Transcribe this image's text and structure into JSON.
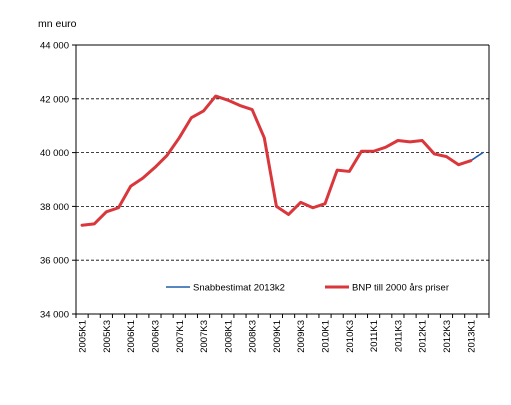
{
  "chart_data": {
    "type": "line",
    "title": "",
    "ylabel": "mn euro",
    "xlabel": "",
    "ylim": [
      34000,
      44000
    ],
    "yticks": [
      34000,
      36000,
      38000,
      40000,
      42000,
      44000
    ],
    "ytick_labels": [
      "34 000",
      "36 000",
      "38 000",
      "40 000",
      "42 000",
      "44 000"
    ],
    "grid": "horizontal-dashed",
    "legend_position": "bottom-right-inside",
    "x": [
      "2005K1",
      "2005K2",
      "2005K3",
      "2005K4",
      "2006K1",
      "2006K2",
      "2006K3",
      "2006K4",
      "2007K1",
      "2007K2",
      "2007K3",
      "2007K4",
      "2008K1",
      "2008K2",
      "2008K3",
      "2008K4",
      "2009K1",
      "2009K2",
      "2009K3",
      "2009K4",
      "2010K1",
      "2010K2",
      "2010K3",
      "2010K4",
      "2011K1",
      "2011K2",
      "2011K3",
      "2011K4",
      "2012K1",
      "2012K2",
      "2012K3",
      "2012K4",
      "2013K1",
      "2013K2"
    ],
    "x_tick_labels": [
      "2005K1",
      "2005K3",
      "2006K1",
      "2006K3",
      "2007K1",
      "2007K3",
      "2008K1",
      "2008K3",
      "2009K1",
      "2009K3",
      "2010K1",
      "2010K3",
      "2011K1",
      "2011K3",
      "2012K1",
      "2012K3",
      "2013K1"
    ],
    "series": [
      {
        "name": "Snabbestimat 2013k2",
        "color": "#1f5fa8",
        "values": [
          null,
          null,
          null,
          null,
          null,
          null,
          null,
          null,
          null,
          null,
          null,
          null,
          null,
          null,
          null,
          null,
          null,
          null,
          null,
          null,
          null,
          null,
          null,
          null,
          null,
          null,
          null,
          null,
          null,
          null,
          null,
          null,
          39700,
          40000
        ]
      },
      {
        "name": "BNP till 2000 års priser",
        "color": "#d9373b",
        "values": [
          37300,
          37350,
          37800,
          37950,
          38750,
          39050,
          39450,
          39900,
          40550,
          41300,
          41550,
          42100,
          41950,
          41750,
          41600,
          40550,
          38000,
          37700,
          38150,
          37950,
          38100,
          39350,
          39300,
          40050,
          40050,
          40200,
          40450,
          40400,
          40450,
          39950,
          39850,
          39550,
          39700,
          null
        ]
      }
    ]
  }
}
